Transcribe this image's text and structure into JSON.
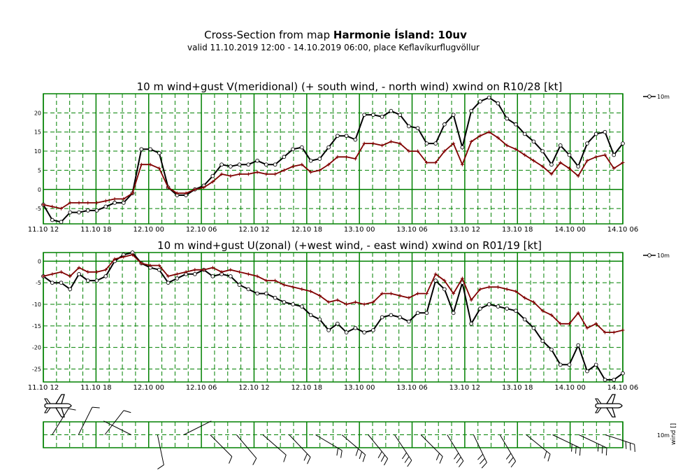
{
  "header": {
    "title_prefix": "Cross-Section from map ",
    "title_bold": "Harmonie Ísland: 10uv",
    "subtitle": "valid 11.10.2019 12:00 - 14.10.2019 06:00, place Keflavíkurflugvöllur"
  },
  "colors": {
    "grid": "#008000",
    "wind_line": "#000000",
    "xwind_line": "#800000"
  },
  "icons": [
    "airplane-icon",
    "wind-barb-icon"
  ],
  "wind_panel": {
    "side_label": "10m",
    "side_label_unit": "wind []"
  },
  "chart_data": [
    {
      "type": "line",
      "title": "10 m wind+gust V(meridional) (+ south wind, - north wind) xwind on R10/28 [kt]",
      "x_tick_labels": [
        "11.10 12",
        "11.10 18",
        "12.10 00",
        "12.10 06",
        "12.10 12",
        "12.10 18",
        "13.10 00",
        "13.10 06",
        "13.10 12",
        "13.10 18",
        "14.10 00",
        "14.10 06"
      ],
      "x_range_hours": [
        0,
        66
      ],
      "ylim": [
        -9,
        25
      ],
      "y_ticks": [
        -5,
        0,
        5,
        10,
        15,
        20
      ],
      "legend": "10m",
      "series": [
        {
          "name": "10m",
          "marker": "circle",
          "values": [
            -4,
            -8,
            -8.5,
            -6,
            -6,
            -5.5,
            -5.5,
            -4.5,
            -3.5,
            -3.5,
            -1,
            10.5,
            10.5,
            9.5,
            0.5,
            -1.5,
            -1.5,
            0,
            1,
            3.5,
            6.5,
            6,
            6.5,
            6.5,
            7.5,
            6.5,
            6.5,
            8.5,
            10.5,
            11,
            7.5,
            8,
            11,
            14,
            14,
            13,
            19.5,
            19.5,
            19,
            20.5,
            19.5,
            16.5,
            16,
            12,
            12,
            17,
            19.5,
            11,
            20.5,
            23,
            24,
            22.5,
            18.5,
            17,
            14.5,
            12.5,
            10,
            6.5,
            11.5,
            9,
            6,
            12,
            14.5,
            15,
            9,
            12
          ]
        },
        {
          "name": "xwind",
          "marker": "plus",
          "values": [
            -4,
            -4.5,
            -5,
            -3.5,
            -3.5,
            -3.5,
            -3.5,
            -3,
            -2.5,
            -2.5,
            -1,
            6.5,
            6.5,
            5.5,
            0.5,
            -1,
            -1,
            0,
            0.5,
            2,
            4,
            3.5,
            4,
            4,
            4.5,
            4,
            4,
            5,
            6,
            6.5,
            4.5,
            5,
            6.5,
            8.5,
            8.5,
            8,
            12,
            12,
            11.5,
            12.5,
            12,
            10,
            10,
            7,
            7,
            10,
            12,
            6.5,
            12.5,
            14,
            15,
            13.5,
            11.5,
            10.5,
            9,
            7.5,
            6,
            4,
            7,
            5.5,
            3.5,
            7.5,
            8.5,
            9,
            5.5,
            7
          ]
        }
      ]
    },
    {
      "type": "line",
      "title": "10 m wind+gust U(zonal) (+west wind, - east wind) xwind on R01/19 [kt]",
      "x_tick_labels": [
        "11.10 12",
        "11.10 18",
        "12.10 00",
        "12.10 06",
        "12.10 12",
        "12.10 18",
        "13.10 00",
        "13.10 06",
        "13.10 12",
        "13.10 18",
        "14.10 00",
        "14.10 06"
      ],
      "x_range_hours": [
        0,
        66
      ],
      "ylim": [
        -28,
        2
      ],
      "y_ticks": [
        -25,
        -20,
        -15,
        -10,
        -5,
        0
      ],
      "legend": "10m",
      "series": [
        {
          "name": "10m",
          "marker": "circle",
          "values": [
            -3.5,
            -5,
            -5,
            -6.5,
            -3,
            -4.5,
            -4.5,
            -3.5,
            0,
            1.5,
            2,
            -0.5,
            -1.5,
            -2,
            -5,
            -4,
            -3,
            -3,
            -2,
            -3.5,
            -3,
            -3.5,
            -5.5,
            -6.5,
            -7.5,
            -7.5,
            -8.5,
            -9.5,
            -10,
            -10.5,
            -12.5,
            -13.5,
            -16,
            -14.5,
            -16.5,
            -15.5,
            -16.5,
            -16,
            -13,
            -12.5,
            -13,
            -14,
            -12,
            -12,
            -4.5,
            -6.5,
            -12,
            -5,
            -14.5,
            -11,
            -10,
            -10.5,
            -11,
            -11.5,
            -13.5,
            -15.5,
            -18.5,
            -20.5,
            -24,
            -24,
            -19.5,
            -25.5,
            -24,
            -27.5,
            -27.5,
            -26
          ]
        },
        {
          "name": "xwind",
          "marker": "plus",
          "values": [
            -3.5,
            -3,
            -2.5,
            -3.5,
            -1.5,
            -2.5,
            -2.5,
            -2,
            0.5,
            1,
            1.5,
            -0.5,
            -1,
            -1,
            -3.5,
            -3,
            -2.5,
            -2,
            -2,
            -1.5,
            -2.5,
            -2,
            -2.5,
            -3,
            -3.5,
            -4.5,
            -4.5,
            -5.5,
            -6,
            -6.5,
            -7,
            -8,
            -9.5,
            -9,
            -10,
            -9.5,
            -10,
            -9.5,
            -7.5,
            -7.5,
            -8,
            -8.5,
            -7.5,
            -7.5,
            -3,
            -4.5,
            -7.5,
            -4,
            -9,
            -6.5,
            -6,
            -6,
            -6.5,
            -7,
            -8.5,
            -9.5,
            -11.5,
            -12.5,
            -14.5,
            -14.5,
            -12,
            -15.5,
            -14.5,
            -16.5,
            -16.5,
            -16
          ]
        }
      ]
    }
  ]
}
